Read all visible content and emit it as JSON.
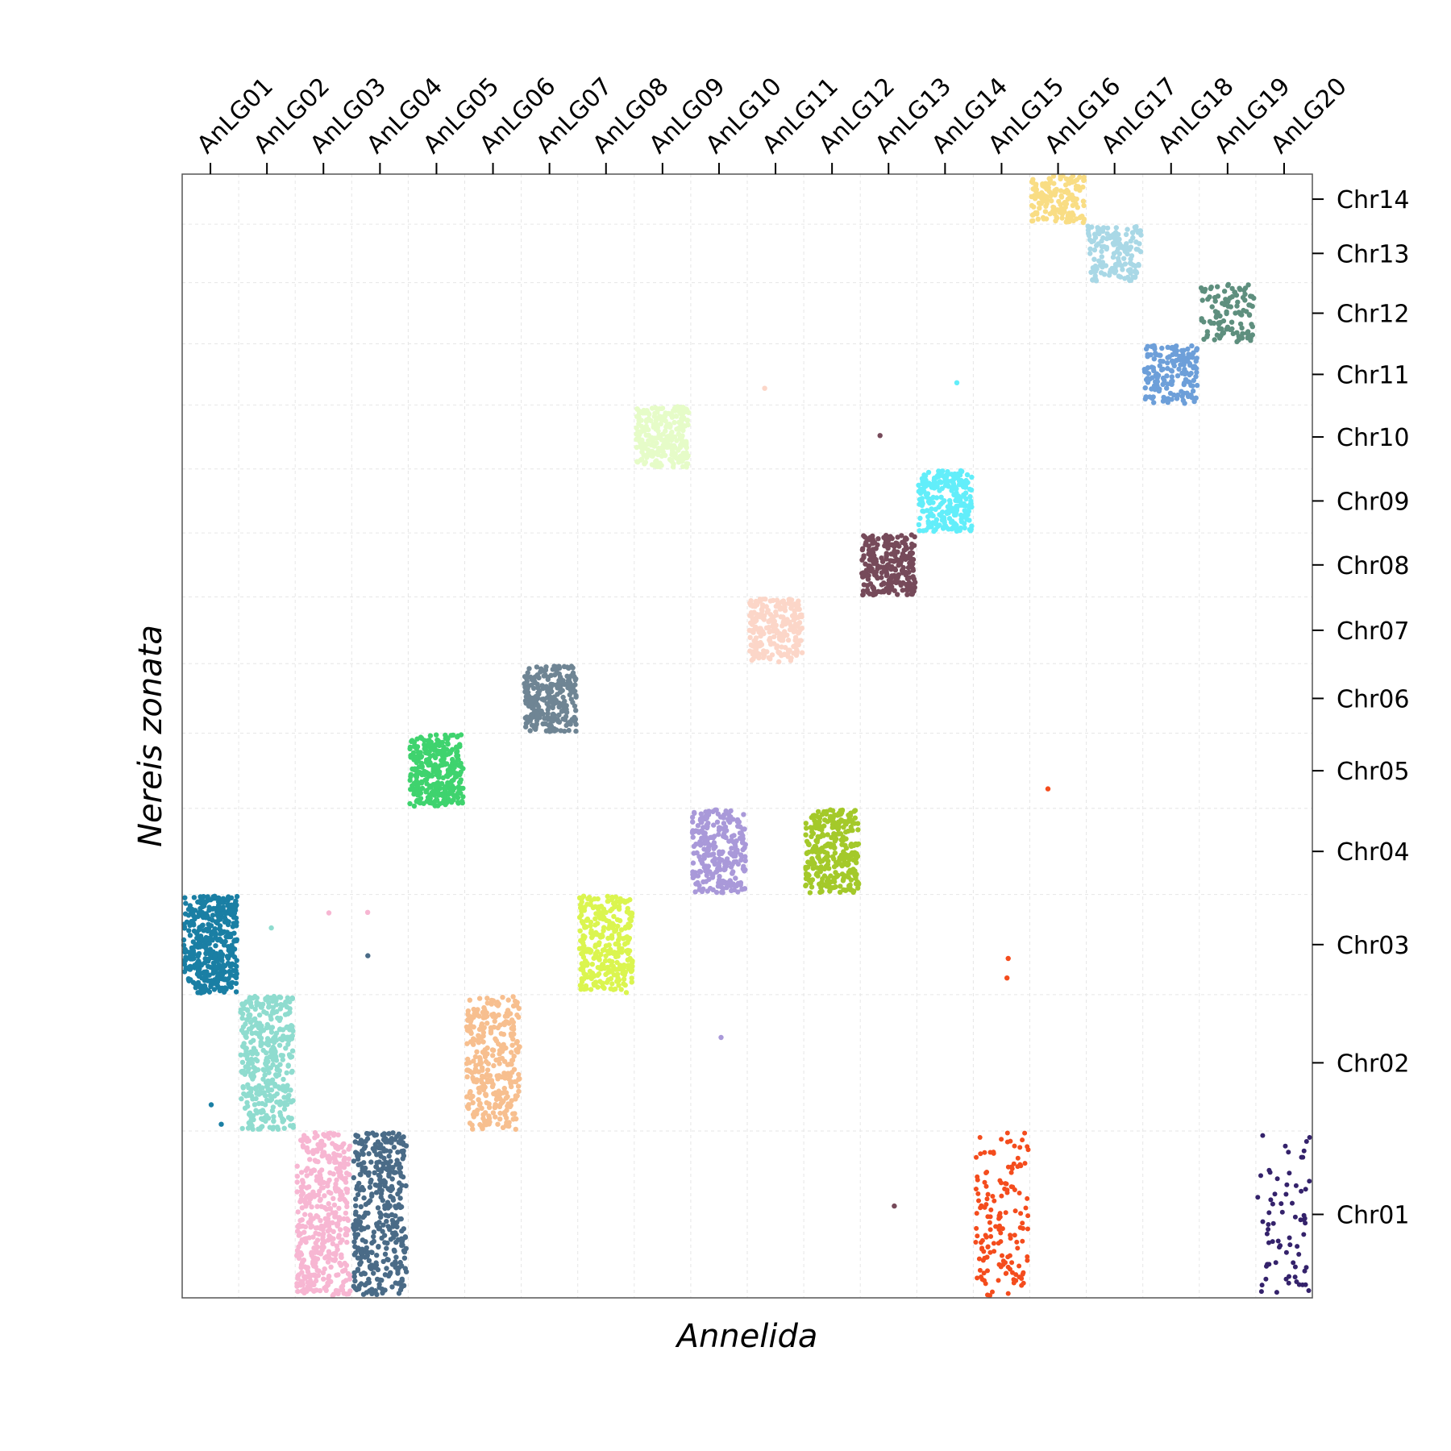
{
  "chart_data": {
    "type": "scatter",
    "title": "",
    "xlabel": "Annelida",
    "ylabel": "Nereis zonata",
    "x_axis_position": "top",
    "y_axis_position": "right",
    "grid": true,
    "x_categories": [
      "AnLG01",
      "AnLG02",
      "AnLG03",
      "AnLG04",
      "AnLG05",
      "AnLG06",
      "AnLG07",
      "AnLG08",
      "AnLG09",
      "AnLG10",
      "AnLG11",
      "AnLG12",
      "AnLG13",
      "AnLG14",
      "AnLG15",
      "AnLG16",
      "AnLG17",
      "AnLG18",
      "AnLG19",
      "AnLG20"
    ],
    "y_categories": [
      {
        "label": "Chr01",
        "span": [
          0,
          300
        ]
      },
      {
        "label": "Chr02",
        "span": [
          300,
          545
        ]
      },
      {
        "label": "Chr03",
        "span": [
          545,
          725
        ]
      },
      {
        "label": "Chr04",
        "span": [
          725,
          880
        ]
      },
      {
        "label": "Chr05",
        "span": [
          880,
          1015
        ]
      },
      {
        "label": "Chr06",
        "span": [
          1015,
          1140
        ]
      },
      {
        "label": "Chr07",
        "span": [
          1140,
          1260
        ]
      },
      {
        "label": "Chr08",
        "span": [
          1260,
          1375
        ]
      },
      {
        "label": "Chr09",
        "span": [
          1375,
          1490
        ]
      },
      {
        "label": "Chr10",
        "span": [
          1490,
          1605
        ]
      },
      {
        "label": "Chr11",
        "span": [
          1605,
          1715
        ]
      },
      {
        "label": "Chr12",
        "span": [
          1715,
          1825
        ]
      },
      {
        "label": "Chr13",
        "span": [
          1825,
          1930
        ]
      },
      {
        "label": "Chr14",
        "span": [
          1930,
          2020
        ]
      }
    ],
    "clusters": [
      {
        "lg": "AnLG01",
        "chr": "Chr03",
        "color": "#1a7fa4",
        "count": 420,
        "style": "dense"
      },
      {
        "lg": "AnLG02",
        "chr": "Chr02",
        "color": "#8fdccf",
        "count": 380,
        "style": "dense"
      },
      {
        "lg": "AnLG03",
        "chr": "Chr01",
        "color": "#f7b6d2",
        "count": 420,
        "style": "dense"
      },
      {
        "lg": "AnLG04",
        "chr": "Chr01",
        "color": "#4a6b87",
        "count": 380,
        "style": "dense"
      },
      {
        "lg": "AnLG05",
        "chr": "Chr05",
        "color": "#3fd36e",
        "count": 300,
        "style": "dense"
      },
      {
        "lg": "AnLG06",
        "chr": "Chr02",
        "color": "#f7bf8f",
        "count": 320,
        "style": "dense"
      },
      {
        "lg": "AnLG07",
        "chr": "Chr06",
        "color": "#6f8594",
        "count": 260,
        "style": "dense"
      },
      {
        "lg": "AnLG08",
        "chr": "Chr03",
        "color": "#dbf54f",
        "count": 300,
        "style": "dense"
      },
      {
        "lg": "AnLG09",
        "chr": "Chr10",
        "color": "#e6fcc8",
        "count": 260,
        "style": "dense"
      },
      {
        "lg": "AnLG10",
        "chr": "Chr04",
        "color": "#a999d9",
        "count": 260,
        "style": "dense"
      },
      {
        "lg": "AnLG11",
        "chr": "Chr07",
        "color": "#fcd6c8",
        "count": 230,
        "style": "dense"
      },
      {
        "lg": "AnLG12",
        "chr": "Chr04",
        "color": "#a4c92a",
        "count": 300,
        "style": "dense"
      },
      {
        "lg": "AnLG13",
        "chr": "Chr08",
        "color": "#764a5a",
        "count": 260,
        "style": "dense"
      },
      {
        "lg": "AnLG14",
        "chr": "Chr09",
        "color": "#62eefa",
        "count": 230,
        "style": "dense"
      },
      {
        "lg": "AnLG15",
        "chr": "Chr01",
        "color": "#f44c1d",
        "count": 150,
        "style": "sparse"
      },
      {
        "lg": "AnLG16",
        "chr": "Chr14",
        "color": "#f9dd84",
        "count": 150,
        "style": "dense"
      },
      {
        "lg": "AnLG17",
        "chr": "Chr13",
        "color": "#a9d8e6",
        "count": 150,
        "style": "dense"
      },
      {
        "lg": "AnLG18",
        "chr": "Chr11",
        "color": "#6d9fd9",
        "count": 170,
        "style": "dense"
      },
      {
        "lg": "AnLG19",
        "chr": "Chr12",
        "color": "#5e8f7e",
        "count": 110,
        "style": "dense"
      },
      {
        "lg": "AnLG20",
        "chr": "Chr01",
        "color": "#34226b",
        "count": 70,
        "style": "sparse"
      }
    ],
    "outliers": [
      {
        "lg": "AnLG03",
        "y": 692,
        "color": "#f7b6d2"
      },
      {
        "lg": "AnLG04",
        "y": 693,
        "color": "#f7b6d2"
      },
      {
        "lg": "AnLG02",
        "y": 665,
        "color": "#8fdccf"
      },
      {
        "lg": "AnLG04",
        "y": 615,
        "color": "#4a6b87"
      },
      {
        "lg": "AnLG01",
        "y": 347,
        "color": "#1a7fa4"
      },
      {
        "lg": "AnLG01",
        "y": 312,
        "color": "#1a7fa4"
      },
      {
        "lg": "AnLG10",
        "y": 468,
        "color": "#a999d9"
      },
      {
        "lg": "AnLG11",
        "y": 1635,
        "color": "#fcd6c8"
      },
      {
        "lg": "AnLG13",
        "y": 1550,
        "color": "#764a5a"
      },
      {
        "lg": "AnLG13",
        "y": 165,
        "color": "#764a5a"
      },
      {
        "lg": "AnLG15",
        "y": 610,
        "color": "#f44c1d"
      },
      {
        "lg": "AnLG15",
        "y": 575,
        "color": "#f44c1d"
      },
      {
        "lg": "AnLG16",
        "y": 915,
        "color": "#f44c1d"
      },
      {
        "lg": "AnLG14",
        "y": 1645,
        "color": "#62eefa"
      }
    ]
  }
}
